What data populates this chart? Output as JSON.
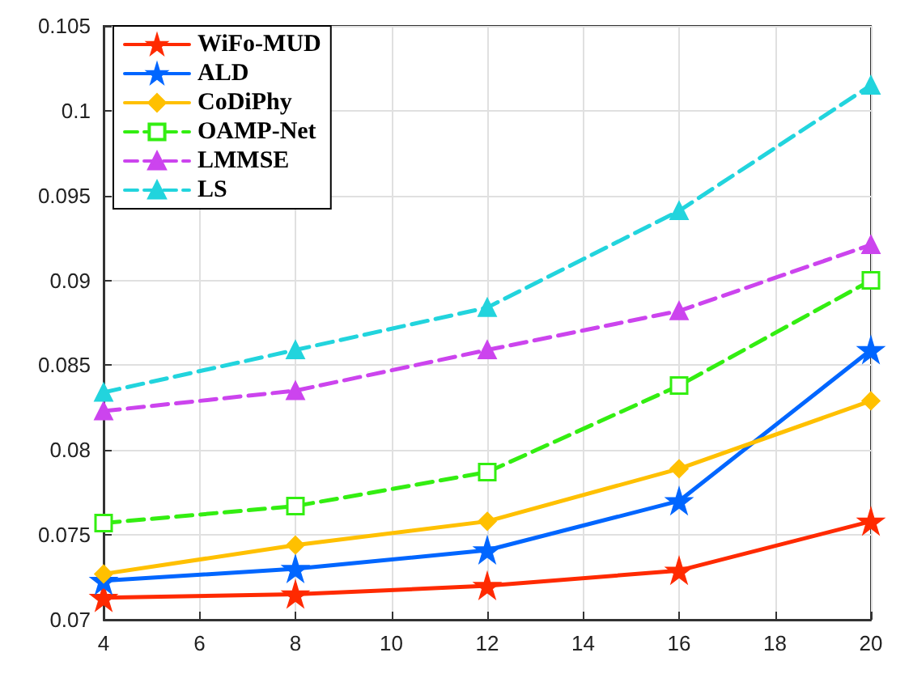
{
  "chart_data": {
    "type": "line",
    "x": [
      4,
      8,
      12,
      16,
      20
    ],
    "xlim": [
      4,
      20
    ],
    "xticks": [
      4,
      6,
      8,
      10,
      12,
      14,
      16,
      18,
      20
    ],
    "ylim": [
      0.07,
      0.105
    ],
    "yticks": [
      0.07,
      0.075,
      0.08,
      0.085,
      0.09,
      0.095,
      0.1,
      0.105
    ],
    "grid": true,
    "legend": "top left",
    "series": [
      {
        "name": "WiFo-MUD",
        "color": "#ff2a00",
        "marker": "star",
        "line_style": "solid",
        "values": [
          0.0713,
          0.0715,
          0.072,
          0.0729,
          0.0758
        ]
      },
      {
        "name": "ALD",
        "color": "#0066ff",
        "marker": "star",
        "line_style": "solid",
        "values": [
          0.0723,
          0.073,
          0.0741,
          0.077,
          0.0859
        ]
      },
      {
        "name": "CoDiPhy",
        "color": "#ffc000",
        "marker": "diamond",
        "line_style": "solid",
        "values": [
          0.0727,
          0.0744,
          0.0758,
          0.0789,
          0.0829
        ]
      },
      {
        "name": "OAMP-Net",
        "color": "#33ee11",
        "marker": "square",
        "line_style": "dashed",
        "values": [
          0.0757,
          0.0767,
          0.0787,
          0.0838,
          0.09
        ]
      },
      {
        "name": "LMMSE",
        "color": "#cc44ee",
        "marker": "triangle",
        "line_style": "dashed",
        "values": [
          0.0823,
          0.0835,
          0.0859,
          0.0882,
          0.0921
        ]
      },
      {
        "name": "LS",
        "color": "#22d4dd",
        "marker": "triangle",
        "line_style": "dashed",
        "values": [
          0.0834,
          0.0859,
          0.0884,
          0.0941,
          0.1015
        ]
      }
    ]
  }
}
